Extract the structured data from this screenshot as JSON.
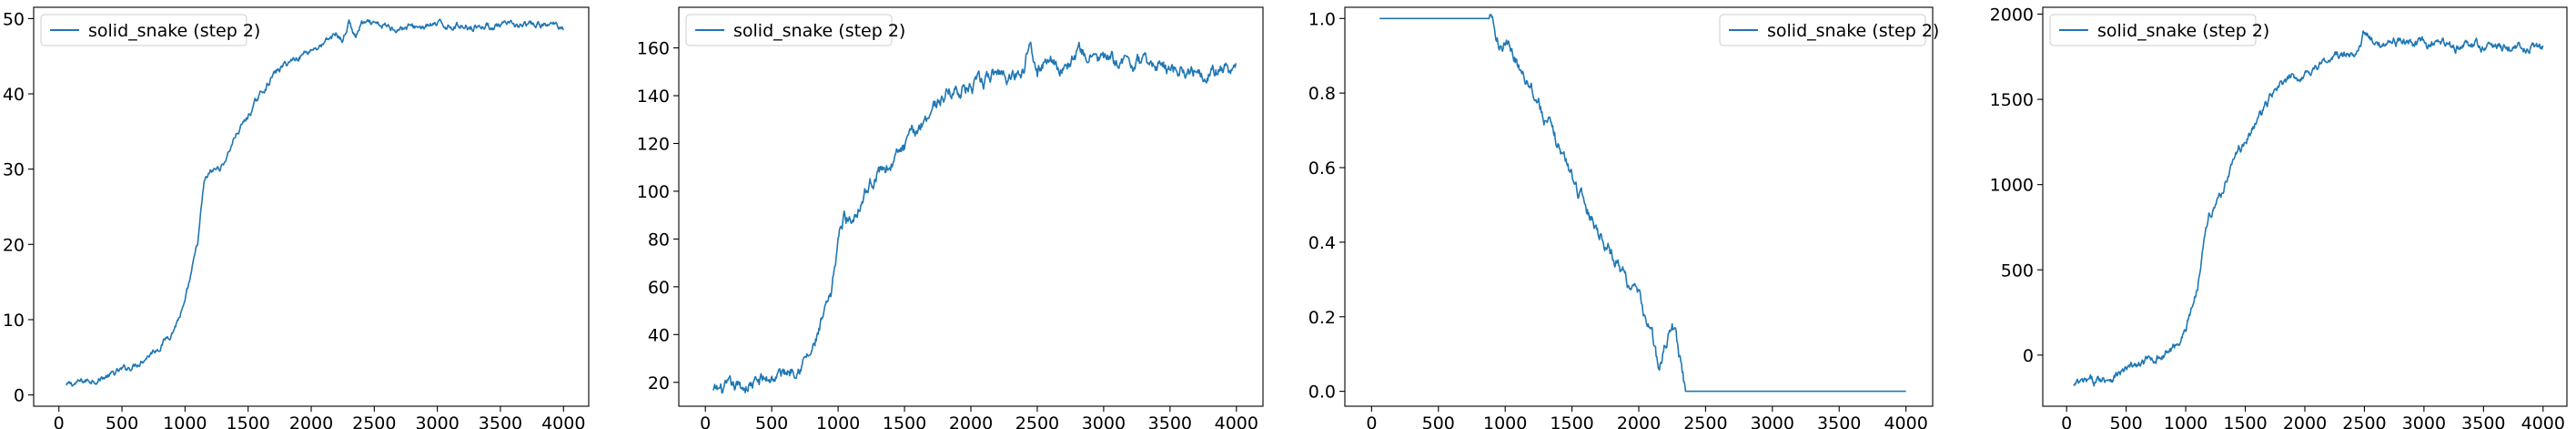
{
  "colors": {
    "series": "#1f77b4"
  },
  "chart_data": [
    {
      "type": "line",
      "title": "",
      "xlabel": "",
      "ylabel": "",
      "xlim": [
        -200,
        4200
      ],
      "ylim": [
        -1.5,
        51.5
      ],
      "xticks": [
        0,
        500,
        1000,
        1500,
        2000,
        2500,
        3000,
        3500,
        4000
      ],
      "xtick_labels": [
        "0",
        "500",
        "1000",
        "1500",
        "2000",
        "2500",
        "3000",
        "3500",
        "4000"
      ],
      "yticks": [
        0,
        10,
        20,
        30,
        40,
        50
      ],
      "ytick_labels": [
        "0",
        "10",
        "20",
        "30",
        "40",
        "50"
      ],
      "grid": false,
      "legend": {
        "position": "upper left",
        "entries": [
          "solid_snake (step 2)"
        ]
      },
      "series": [
        {
          "name": "solid_snake (step 2)",
          "noise": 0.6,
          "x": [
            60,
            200,
            400,
            600,
            800,
            900,
            1000,
            1050,
            1100,
            1150,
            1200,
            1300,
            1400,
            1500,
            1600,
            1700,
            1800,
            1900,
            2000,
            2100,
            2200,
            2250,
            2300,
            2350,
            2400,
            2500,
            2700,
            3000,
            3500,
            4000
          ],
          "y": [
            1.2,
            1.8,
            2.5,
            4.0,
            6.5,
            8.5,
            12,
            16,
            20,
            28,
            29.5,
            30.5,
            34.5,
            37,
            40,
            42.5,
            44,
            45,
            46,
            46.5,
            48,
            47,
            49.5,
            47.5,
            49.3,
            49.0,
            48.8,
            49.1,
            49.0,
            49.1
          ]
        }
      ]
    },
    {
      "type": "line",
      "title": "",
      "xlabel": "",
      "ylabel": "",
      "xlim": [
        -200,
        4200
      ],
      "ylim": [
        10,
        177
      ],
      "xticks": [
        0,
        500,
        1000,
        1500,
        2000,
        2500,
        3000,
        3500,
        4000
      ],
      "xtick_labels": [
        "0",
        "500",
        "1000",
        "1500",
        "2000",
        "2500",
        "3000",
        "3500",
        "4000"
      ],
      "yticks": [
        20,
        40,
        60,
        80,
        100,
        120,
        140,
        160
      ],
      "ytick_labels": [
        "20",
        "40",
        "60",
        "80",
        "100",
        "120",
        "140",
        "160"
      ],
      "grid": false,
      "legend": {
        "position": "upper left",
        "entries": [
          "solid_snake (step 2)"
        ]
      },
      "series": [
        {
          "name": "solid_snake (step 2)",
          "noise": 4,
          "x": [
            60,
            200,
            400,
            600,
            800,
            900,
            950,
            1000,
            1050,
            1100,
            1200,
            1300,
            1400,
            1500,
            1600,
            1700,
            1800,
            1900,
            2000,
            2100,
            2200,
            2300,
            2400,
            2450,
            2500,
            2600,
            2700,
            2800,
            3000,
            3500,
            4000
          ],
          "y": [
            16,
            17,
            20,
            24,
            32,
            48,
            55,
            80,
            90,
            88,
            100,
            108,
            112,
            118,
            126,
            135,
            140,
            143,
            143,
            145,
            150,
            148,
            152,
            168,
            150,
            157,
            151,
            158,
            155,
            152,
            150
          ]
        }
      ]
    },
    {
      "type": "line",
      "title": "",
      "xlabel": "",
      "ylabel": "",
      "xlim": [
        -200,
        4200
      ],
      "ylim": [
        -0.04,
        1.03
      ],
      "xticks": [
        0,
        500,
        1000,
        1500,
        2000,
        2500,
        3000,
        3500,
        4000
      ],
      "xtick_labels": [
        "0",
        "500",
        "1000",
        "1500",
        "2000",
        "2500",
        "3000",
        "3500",
        "4000"
      ],
      "yticks": [
        0.0,
        0.2,
        0.4,
        0.6,
        0.8,
        1.0
      ],
      "ytick_labels": [
        "0.0",
        "0.2",
        "0.4",
        "0.6",
        "0.8",
        "1.0"
      ],
      "grid": false,
      "legend": {
        "position": "upper right",
        "entries": [
          "solid_snake (step 2)"
        ]
      },
      "series": [
        {
          "name": "solid_snake (step 2)",
          "noise": 0.025,
          "x": [
            60,
            880,
            950,
            1000,
            1100,
            1200,
            1300,
            1400,
            1500,
            1600,
            1700,
            1800,
            1900,
            2000,
            2100,
            2150,
            2200,
            2250,
            2300,
            2350,
            2400,
            3000,
            4000
          ],
          "y": [
            1.0,
            1.0,
            0.94,
            0.93,
            0.88,
            0.82,
            0.73,
            0.66,
            0.58,
            0.5,
            0.43,
            0.37,
            0.31,
            0.25,
            0.15,
            0.05,
            0.12,
            0.2,
            0.1,
            0.0,
            0.0,
            0.0,
            0.0
          ]
        }
      ]
    },
    {
      "type": "line",
      "title": "",
      "xlabel": "",
      "ylabel": "",
      "xlim": [
        -200,
        4200
      ],
      "ylim": [
        -300,
        2040
      ],
      "xticks": [
        0,
        500,
        1000,
        1500,
        2000,
        2500,
        3000,
        3500,
        4000
      ],
      "xtick_labels": [
        "0",
        "500",
        "1000",
        "1500",
        "2000",
        "2500",
        "3000",
        "3500",
        "4000"
      ],
      "yticks": [
        0,
        500,
        1000,
        1500,
        2000
      ],
      "ytick_labels": [
        "0",
        "500",
        "1000",
        "1500",
        "2000"
      ],
      "grid": false,
      "legend": {
        "position": "upper left",
        "entries": [
          "solid_snake (step 2)"
        ]
      },
      "series": [
        {
          "name": "solid_snake (step 2)",
          "noise": 35,
          "x": [
            60,
            200,
            400,
            600,
            800,
            900,
            1000,
            1100,
            1150,
            1200,
            1300,
            1400,
            1500,
            1600,
            1700,
            1800,
            1900,
            2000,
            2100,
            2200,
            2300,
            2400,
            2500,
            2600,
            2700,
            3000,
            3500,
            4000
          ],
          "y": [
            -180,
            -160,
            -120,
            -60,
            0,
            40,
            150,
            400,
            700,
            820,
            950,
            1150,
            1250,
            1380,
            1500,
            1580,
            1620,
            1650,
            1700,
            1730,
            1760,
            1750,
            1900,
            1800,
            1850,
            1820,
            1810,
            1800
          ]
        }
      ]
    }
  ]
}
